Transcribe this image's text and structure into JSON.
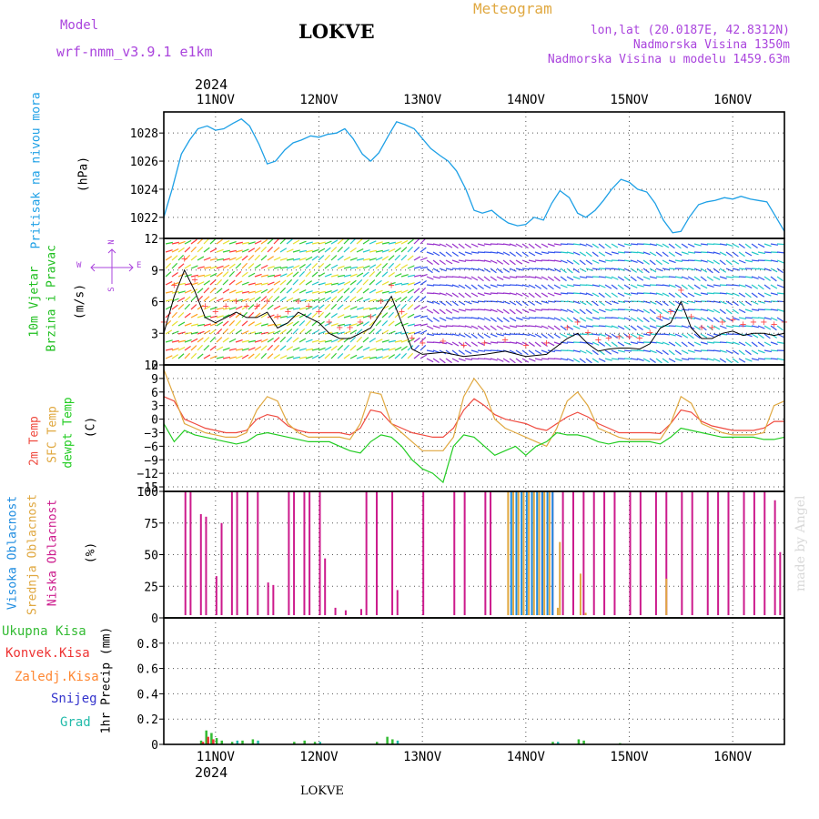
{
  "header": {
    "model_label": "Model",
    "model_name": "wrf-nmm_v3.9.1  e1km",
    "station": "LOKVE",
    "meteogram": "Meteogram",
    "coords": "lon,lat (20.0187E, 42.8312N)",
    "altitude": "Nadmorska Visina 1350m",
    "model_altitude": "Nadmorska Visina u modelu 1459.63m",
    "year_top": "2024",
    "year_bottom": "2024",
    "footer_station": "LOKVE",
    "credit": "made by Angel"
  },
  "colors": {
    "pressure": "#1ea0e6",
    "wind_label": "#1fbf1f",
    "temp2m": "#ef4a3f",
    "sfc": "#e0a840",
    "dew": "#22cc22",
    "high_cloud": "#1e8ce0",
    "mid_cloud": "#e0a840",
    "low_cloud": "#cc1a8c",
    "total_precip": "#33bb33",
    "conv_precip": "#ee3333",
    "frz_precip": "#ff8833",
    "snow": "#3333cc",
    "hail": "#22bbaa",
    "compass": "#aa44dd"
  },
  "chart_data": [
    {
      "type": "line",
      "panel": "pressure",
      "ylabel_main": "Pritisak na nivou mora",
      "unit": "(hPa)",
      "x_ticks": [
        "11NOV",
        "12NOV",
        "13NOV",
        "14NOV",
        "15NOV",
        "16NOV"
      ],
      "x_range_days": [
        10.5,
        16.5
      ],
      "ylim": [
        1020.5,
        1029.5
      ],
      "y_ticks": [
        "1022",
        "1024",
        "1026",
        "1028"
      ],
      "series": [
        {
          "x": [
            10.5,
            10.58,
            10.67,
            10.75,
            10.83,
            10.92,
            11.0,
            11.08,
            11.17,
            11.25,
            11.33,
            11.42,
            11.5,
            11.58,
            11.67,
            11.75,
            11.83,
            11.92,
            12.0,
            12.08,
            12.17,
            12.25,
            12.33,
            12.42,
            12.5,
            12.58,
            12.67,
            12.75,
            12.83,
            12.92,
            13.0,
            13.08,
            13.17,
            13.25,
            13.33,
            13.42,
            13.5,
            13.58,
            13.67,
            13.75,
            13.83,
            13.92,
            14.0,
            14.08,
            14.17,
            14.25,
            14.33,
            14.42,
            14.5,
            14.58,
            14.67,
            14.75,
            14.83,
            14.92,
            15.0,
            15.08,
            15.17,
            15.25,
            15.33,
            15.42,
            15.5,
            15.58,
            15.67,
            15.75,
            15.83,
            15.92,
            16.0,
            16.08,
            16.17,
            16.25,
            16.33,
            16.42,
            16.5
          ],
          "values": [
            1022.0,
            1024.0,
            1026.5,
            1027.5,
            1028.3,
            1028.5,
            1028.2,
            1028.3,
            1028.7,
            1029.0,
            1028.5,
            1027.2,
            1025.8,
            1026.0,
            1026.8,
            1027.3,
            1027.5,
            1027.8,
            1027.7,
            1027.9,
            1028.0,
            1028.3,
            1027.6,
            1026.5,
            1026.0,
            1026.6,
            1027.8,
            1028.8,
            1028.6,
            1028.3,
            1027.6,
            1026.9,
            1026.4,
            1026.0,
            1025.3,
            1024.0,
            1022.5,
            1022.3,
            1022.5,
            1022.0,
            1021.6,
            1021.4,
            1021.5,
            1022.0,
            1021.8,
            1023.0,
            1023.9,
            1023.4,
            1022.3,
            1022.0,
            1022.5,
            1023.2,
            1024.0,
            1024.7,
            1024.5,
            1024.0,
            1023.8,
            1023.0,
            1021.8,
            1020.9,
            1021.0,
            1022.0,
            1022.9,
            1023.1,
            1023.2,
            1023.4,
            1023.3,
            1023.5,
            1023.3,
            1023.2,
            1023.1,
            1022.0,
            1021.0
          ]
        }
      ]
    },
    {
      "type": "line",
      "panel": "wind",
      "ylabel_main": "10m Vjetar",
      "ylabel_sub": "Brzina i Pravac",
      "unit": "(m/s)",
      "compass": {
        "north": "N",
        "west": "W",
        "east": "E",
        "south": "S"
      },
      "ylim": [
        0,
        12
      ],
      "y_ticks": [
        "0",
        "3",
        "6",
        "9",
        "12"
      ],
      "series": [
        {
          "name": "wind speed",
          "x": [
            10.5,
            10.6,
            10.7,
            10.8,
            10.9,
            11.0,
            11.1,
            11.2,
            11.3,
            11.4,
            11.5,
            11.6,
            11.7,
            11.8,
            11.9,
            12.0,
            12.1,
            12.2,
            12.3,
            12.4,
            12.5,
            12.6,
            12.7,
            12.8,
            12.9,
            13.0,
            13.2,
            13.4,
            13.6,
            13.8,
            14.0,
            14.2,
            14.4,
            14.5,
            14.6,
            14.7,
            14.8,
            14.9,
            15.0,
            15.1,
            15.2,
            15.3,
            15.4,
            15.5,
            15.6,
            15.7,
            15.8,
            15.9,
            16.0,
            16.1,
            16.2,
            16.3,
            16.4,
            16.5
          ],
          "values": [
            3.0,
            6.5,
            9.0,
            7.0,
            4.5,
            4.0,
            4.5,
            5.0,
            4.5,
            4.5,
            5.0,
            3.5,
            4.0,
            5.0,
            4.5,
            4.0,
            3.0,
            2.5,
            2.5,
            3.0,
            3.5,
            5.0,
            6.5,
            4.0,
            1.5,
            1.0,
            1.2,
            0.8,
            1.0,
            1.3,
            0.8,
            1.0,
            2.5,
            3.0,
            2.0,
            1.3,
            1.5,
            1.6,
            1.6,
            1.5,
            2.0,
            3.5,
            4.0,
            6.0,
            3.5,
            2.5,
            2.5,
            3.0,
            3.2,
            2.8,
            3.0,
            3.0,
            2.8,
            3.0
          ]
        }
      ]
    },
    {
      "type": "line",
      "panel": "temperature",
      "ylabel_main": "2m Temp",
      "ylabel_sub": "SFC Temp",
      "ylabel_sub2": "dewpt Temp",
      "unit": "(C)",
      "ylim": [
        -16,
        12
      ],
      "y_ticks": [
        "12",
        "9",
        "6",
        "3",
        "0",
        "−3",
        "−6",
        "−9",
        "−12",
        "−15"
      ],
      "series": [
        {
          "name": "2m Temp",
          "x": [
            10.5,
            10.6,
            10.7,
            10.8,
            10.9,
            11.0,
            11.1,
            11.2,
            11.3,
            11.4,
            11.5,
            11.6,
            11.7,
            11.8,
            11.9,
            12.0,
            12.1,
            12.2,
            12.3,
            12.4,
            12.5,
            12.6,
            12.7,
            12.8,
            12.9,
            13.0,
            13.1,
            13.2,
            13.3,
            13.4,
            13.5,
            13.6,
            13.7,
            13.8,
            13.9,
            14.0,
            14.1,
            14.2,
            14.3,
            14.4,
            14.5,
            14.6,
            14.7,
            14.8,
            14.9,
            15.0,
            15.1,
            15.2,
            15.3,
            15.4,
            15.5,
            15.6,
            15.7,
            15.8,
            15.9,
            16.0,
            16.1,
            16.2,
            16.3,
            16.4,
            16.5
          ],
          "values": [
            5,
            4,
            0,
            -1,
            -2,
            -2.5,
            -3,
            -3,
            -2.5,
            0,
            1,
            0.5,
            -1.5,
            -2.5,
            -3,
            -3,
            -3,
            -3,
            -3.5,
            -2,
            2,
            1.5,
            -1,
            -2,
            -3,
            -3.5,
            -4,
            -4,
            -2,
            2,
            4.5,
            3,
            1,
            0,
            -0.5,
            -1,
            -2,
            -2.5,
            -1,
            0.5,
            1.5,
            0.5,
            -1,
            -2,
            -3,
            -3,
            -3,
            -3,
            -3.2,
            -1,
            2,
            1.5,
            -0.5,
            -1.5,
            -2,
            -2.5,
            -2.5,
            -2.5,
            -2,
            -0.5,
            -0.5
          ]
        },
        {
          "name": "SFC Temp",
          "x": [
            10.5,
            10.6,
            10.7,
            10.8,
            10.9,
            11.0,
            11.1,
            11.2,
            11.3,
            11.4,
            11.5,
            11.6,
            11.7,
            11.8,
            11.9,
            12.0,
            12.1,
            12.2,
            12.3,
            12.4,
            12.5,
            12.6,
            12.7,
            12.8,
            12.9,
            13.0,
            13.1,
            13.2,
            13.3,
            13.4,
            13.5,
            13.6,
            13.7,
            13.8,
            13.9,
            14.0,
            14.1,
            14.2,
            14.3,
            14.4,
            14.5,
            14.6,
            14.7,
            14.8,
            14.9,
            15.0,
            15.1,
            15.2,
            15.3,
            15.4,
            15.5,
            15.6,
            15.7,
            15.8,
            15.9,
            16.0,
            16.1,
            16.2,
            16.3,
            16.4,
            16.5
          ],
          "values": [
            11,
            5,
            -1,
            -2,
            -3,
            -3.5,
            -4,
            -4,
            -3,
            2,
            5,
            4,
            -1,
            -3,
            -4,
            -4,
            -4,
            -4,
            -4.5,
            -1,
            6,
            5.5,
            -1,
            -3,
            -5,
            -7,
            -7,
            -7,
            -4,
            5,
            9,
            6,
            0,
            -2,
            -3,
            -4,
            -5,
            -6,
            -2,
            4,
            6,
            3,
            -2,
            -3,
            -4,
            -4.5,
            -4.5,
            -4.5,
            -4.5,
            -1,
            5,
            3.5,
            -1,
            -2,
            -3,
            -3.5,
            -3.5,
            -3.5,
            -3,
            3,
            4
          ]
        },
        {
          "name": "dewpt Temp",
          "x": [
            10.5,
            10.6,
            10.7,
            10.8,
            10.9,
            11.0,
            11.1,
            11.2,
            11.3,
            11.4,
            11.5,
            11.6,
            11.7,
            11.8,
            11.9,
            12.0,
            12.1,
            12.2,
            12.3,
            12.4,
            12.5,
            12.6,
            12.7,
            12.8,
            12.9,
            13.0,
            13.1,
            13.2,
            13.3,
            13.4,
            13.5,
            13.6,
            13.7,
            13.8,
            13.9,
            14.0,
            14.1,
            14.2,
            14.3,
            14.4,
            14.5,
            14.6,
            14.7,
            14.8,
            14.9,
            15.0,
            15.1,
            15.2,
            15.3,
            15.4,
            15.5,
            15.6,
            15.7,
            15.8,
            15.9,
            16.0,
            16.1,
            16.2,
            16.3,
            16.4,
            16.5
          ],
          "values": [
            -1,
            -5,
            -2.5,
            -3.5,
            -4,
            -4.5,
            -5,
            -5.5,
            -5,
            -3.5,
            -3,
            -3.5,
            -4,
            -4.5,
            -5,
            -5,
            -5,
            -6,
            -7,
            -7.5,
            -5,
            -3.5,
            -4,
            -6,
            -9,
            -11,
            -12,
            -14,
            -6,
            -3.5,
            -4,
            -6,
            -8,
            -7,
            -6,
            -8,
            -6,
            -5,
            -3,
            -3.5,
            -3.5,
            -4,
            -5,
            -5.5,
            -5,
            -5,
            -5,
            -5,
            -5.5,
            -4,
            -2,
            -2.5,
            -3,
            -3.5,
            -4,
            -4,
            -4,
            -4,
            -4.5,
            -4.5,
            -4
          ]
        }
      ]
    },
    {
      "type": "bar",
      "panel": "cloud",
      "ylabel_main": "Visoka Oblacnost",
      "ylabel_sub": "Srednja Oblacnost",
      "ylabel_sub2": "Niska Oblacnost",
      "unit": "(%)",
      "ylim": [
        0,
        100
      ],
      "y_ticks": [
        "0",
        "25",
        "50",
        "75",
        "100"
      ],
      "series": [
        {
          "name": "Niska Oblacnost",
          "x": [
            10.7,
            10.75,
            10.85,
            10.9,
            11.0,
            11.05,
            11.15,
            11.2,
            11.3,
            11.4,
            11.5,
            11.55,
            11.7,
            11.75,
            11.85,
            11.9,
            12.0,
            12.05,
            12.15,
            12.25,
            12.4,
            12.45,
            12.55,
            12.7,
            12.75,
            13.0,
            13.3,
            13.4,
            13.6,
            13.65,
            14.05,
            14.15,
            14.25,
            14.35,
            14.45,
            14.55,
            14.65,
            14.75,
            14.85,
            15.0,
            15.1,
            15.25,
            15.35,
            15.5,
            15.6,
            15.75,
            15.85,
            15.95,
            16.1,
            16.2,
            16.3,
            16.4,
            16.45
          ],
          "values": [
            100,
            100,
            82,
            80,
            33,
            75,
            100,
            100,
            100,
            100,
            28,
            26,
            100,
            100,
            100,
            100,
            100,
            47,
            8,
            6,
            7,
            100,
            100,
            100,
            22,
            100,
            100,
            100,
            100,
            100,
            100,
            100,
            100,
            100,
            100,
            100,
            100,
            100,
            100,
            100,
            100,
            100,
            100,
            100,
            100,
            100,
            100,
            100,
            100,
            100,
            100,
            93,
            52
          ]
        },
        {
          "name": "Srednja Oblacnost",
          "x": [
            13.82,
            13.87,
            13.92,
            13.97,
            14.02,
            14.07,
            14.12,
            14.17,
            14.22,
            14.3,
            14.32,
            14.47,
            14.52,
            14.57,
            15.35
          ],
          "values": [
            100,
            100,
            100,
            100,
            100,
            100,
            100,
            100,
            100,
            8,
            60,
            2,
            35,
            4,
            31
          ]
        },
        {
          "name": "Visoka Oblacnost",
          "x": [
            13.85,
            13.9,
            13.95,
            14.0,
            14.05,
            14.1,
            14.15,
            14.2,
            14.25
          ],
          "values": [
            100,
            100,
            100,
            100,
            100,
            100,
            100,
            100,
            100
          ]
        }
      ]
    },
    {
      "type": "bar",
      "panel": "precip",
      "legend": [
        "Ukupna Kisa",
        "Konvek.Kisa",
        "Zaledj.Kisa",
        "Snijeg",
        "Grad"
      ],
      "ylabel_main": "1hr Precip (mm)",
      "ylim": [
        0,
        1.0
      ],
      "y_ticks": [
        "0",
        "0.2",
        "0.4",
        "0.6",
        "0.8"
      ],
      "series": [
        {
          "name": "Ukupna Kisa",
          "x": [
            10.85,
            10.9,
            10.95,
            11.0,
            11.05,
            11.15,
            11.25,
            11.35,
            11.75,
            11.85,
            11.95,
            12.55,
            12.65,
            12.7,
            14.25,
            14.5,
            14.55,
            14.9
          ],
          "values": [
            0.03,
            0.11,
            0.09,
            0.05,
            0.03,
            0.02,
            0.03,
            0.04,
            0.02,
            0.03,
            0.02,
            0.02,
            0.06,
            0.04,
            0.02,
            0.04,
            0.03,
            0.01
          ]
        },
        {
          "name": "Konvek.Kisa",
          "x": [
            10.85,
            10.9,
            10.95
          ],
          "values": [
            0.02,
            0.06,
            0.04
          ]
        },
        {
          "name": "Grad",
          "x": [
            11.2,
            11.4,
            12.0,
            12.75,
            14.3
          ],
          "values": [
            0.03,
            0.03,
            0.02,
            0.03,
            0.02
          ]
        }
      ]
    }
  ]
}
